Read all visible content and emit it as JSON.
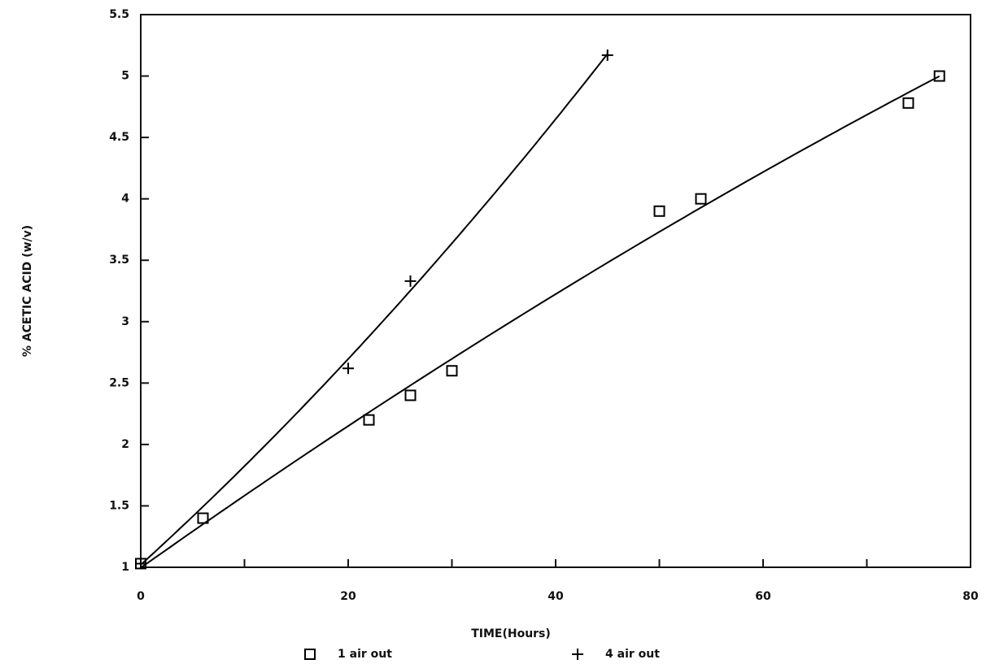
{
  "chart_data": {
    "type": "scatter",
    "xlabel": "TIME(Hours)",
    "ylabel": "% ACETIC ACID (w/v)",
    "xlim": [
      0,
      80
    ],
    "xticks": [
      0,
      20,
      40,
      60,
      80
    ],
    "xminorticks": [
      10,
      30,
      50,
      70
    ],
    "ylim": [
      1,
      5.5
    ],
    "yticks": [
      1,
      1.5,
      2,
      2.5,
      3,
      3.5,
      4,
      4.5,
      5,
      5.5
    ],
    "curve": "quadratic-fit",
    "series": [
      {
        "name": "1 air out",
        "color": "#000000",
        "marker": "square",
        "x": [
          0,
          6,
          22,
          26,
          30,
          50,
          54,
          74,
          77
        ],
        "values": [
          1.03,
          1.4,
          2.2,
          2.4,
          2.6,
          3.9,
          4.0,
          4.78,
          5.0
        ]
      },
      {
        "name": "4 air out",
        "color": "#000000",
        "marker": "plus",
        "x": [
          0,
          20,
          26,
          45
        ],
        "values": [
          1.03,
          2.62,
          3.33,
          5.17
        ]
      }
    ]
  }
}
